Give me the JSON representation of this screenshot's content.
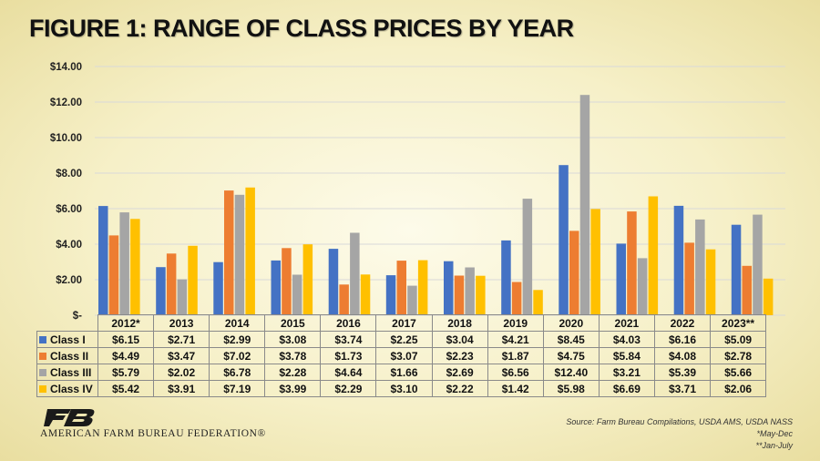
{
  "title": "FIGURE 1: RANGE OF CLASS PRICES BY YEAR",
  "colors": {
    "Class I": "#4472C4",
    "Class II": "#ED7D31",
    "Class III": "#A5A5A5",
    "Class IV": "#FFC000",
    "gridline": "#d9d9d9"
  },
  "chart_data": {
    "type": "bar",
    "title": "FIGURE 1: RANGE OF CLASS PRICES BY YEAR",
    "categories": [
      "2012*",
      "2013",
      "2014",
      "2015",
      "2016",
      "2017",
      "2018",
      "2019",
      "2020",
      "2021",
      "2022",
      "2023**"
    ],
    "y_ticks": [
      "$14.00",
      "$12.00",
      "$10.00",
      "$8.00",
      "$6.00",
      "$4.00",
      "$2.00",
      "$-"
    ],
    "ylim": [
      0,
      14
    ],
    "grid": true,
    "legend": "data table below chart",
    "series": [
      {
        "name": "Class I",
        "values": [
          6.15,
          2.71,
          2.99,
          3.08,
          3.74,
          2.25,
          3.04,
          4.21,
          8.45,
          4.03,
          6.16,
          5.09
        ],
        "labels": [
          "$6.15",
          "$2.71",
          "$2.99",
          "$3.08",
          "$3.74",
          "$2.25",
          "$3.04",
          "$4.21",
          "$8.45",
          "$4.03",
          "$6.16",
          "$5.09"
        ]
      },
      {
        "name": "Class II",
        "values": [
          4.49,
          3.47,
          7.02,
          3.78,
          1.73,
          3.07,
          2.23,
          1.87,
          4.75,
          5.84,
          4.08,
          2.78
        ],
        "labels": [
          "$4.49",
          "$3.47",
          "$7.02",
          "$3.78",
          "$1.73",
          "$3.07",
          "$2.23",
          "$1.87",
          "$4.75",
          "$5.84",
          "$4.08",
          "$2.78"
        ]
      },
      {
        "name": "Class III",
        "values": [
          5.79,
          2.02,
          6.78,
          2.28,
          4.64,
          1.66,
          2.69,
          6.56,
          12.4,
          3.21,
          5.39,
          5.66
        ],
        "labels": [
          "$5.79",
          "$2.02",
          "$6.78",
          "$2.28",
          "$4.64",
          "$1.66",
          "$2.69",
          "$6.56",
          "$12.40",
          "$3.21",
          "$5.39",
          "$5.66"
        ]
      },
      {
        "name": "Class IV",
        "values": [
          5.42,
          3.91,
          7.19,
          3.99,
          2.29,
          3.1,
          2.22,
          1.42,
          5.98,
          6.69,
          3.71,
          2.06
        ],
        "labels": [
          "$5.42",
          "$3.91",
          "$7.19",
          "$3.99",
          "$2.29",
          "$3.10",
          "$2.22",
          "$1.42",
          "$5.98",
          "$6.69",
          "$3.71",
          "$2.06"
        ]
      }
    ]
  },
  "logo": {
    "text": "AMERICAN FARM BUREAU FEDERATION®",
    "mark_letters": "FB"
  },
  "source": {
    "line1": "Source: Farm Bureau Compilations, USDA AMS, USDA NASS",
    "line2": "*May-Dec",
    "line3": "**Jan-July"
  }
}
